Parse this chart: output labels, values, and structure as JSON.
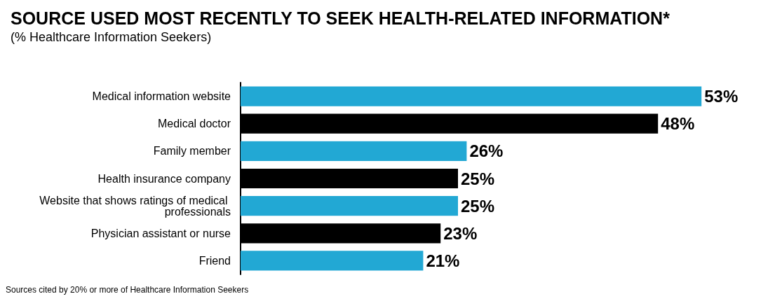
{
  "chart_data": {
    "type": "bar",
    "orientation": "horizontal",
    "title": "SOURCE USED MOST RECENTLY TO SEEK HEALTH-RELATED INFORMATION*",
    "subtitle": "(% Healthcare Information Seekers)",
    "categories": [
      "Medical information website",
      "Medical doctor",
      "Family member",
      "Health insurance company",
      "Website that shows ratings of medical professionals",
      "Physician assistant or nurse",
      "Friend"
    ],
    "values": [
      53,
      48,
      26,
      25,
      25,
      23,
      21
    ],
    "value_labels": [
      "53%",
      "48%",
      "26%",
      "25%",
      "25%",
      "23%",
      "21%"
    ],
    "colors": [
      "#22a8d4",
      "#000000",
      "#22a8d4",
      "#000000",
      "#22a8d4",
      "#000000",
      "#22a8d4"
    ],
    "annotations": [
      "Sources cited by 20% or more of Healthcare Information Seekers"
    ]
  }
}
